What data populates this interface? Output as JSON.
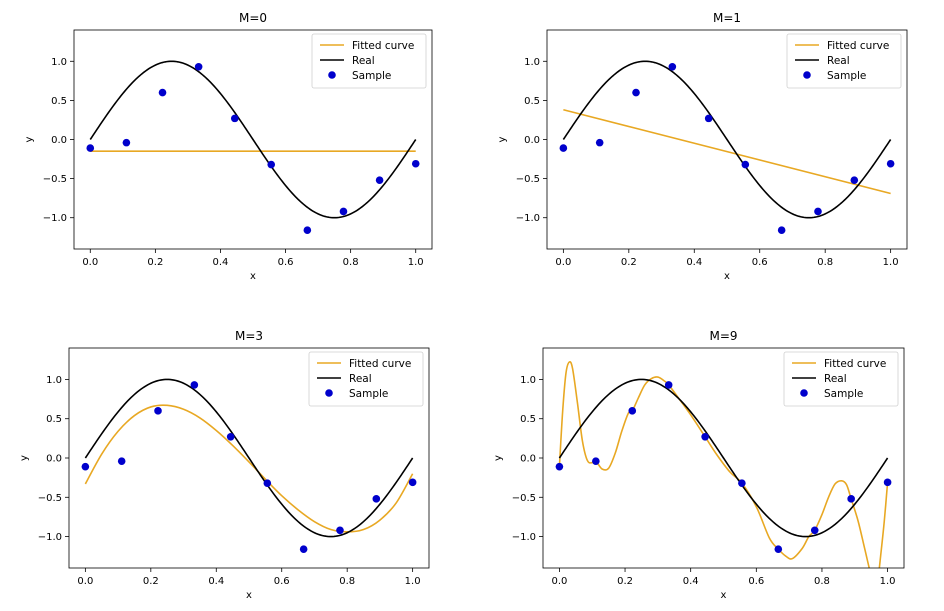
{
  "colors": {
    "fitted": "#e8a823",
    "real": "#000000",
    "sample": "#0000cc",
    "axes": "#000000",
    "background": "#ffffff"
  },
  "legend_labels": [
    "Fitted curve",
    "Real",
    "Sample"
  ],
  "chart_data": [
    {
      "type": "line",
      "title": "M=0",
      "xlabel": "x",
      "ylabel": "y",
      "xlim": [
        -0.05,
        1.05
      ],
      "ylim": [
        -1.4,
        1.4
      ],
      "xticks": [
        0.0,
        0.2,
        0.4,
        0.6,
        0.8,
        1.0
      ],
      "xtick_labels": [
        "0.0",
        "0.2",
        "0.4",
        "0.6",
        "0.8",
        "1.0"
      ],
      "yticks": [
        -1.0,
        -0.5,
        0.0,
        0.5,
        1.0
      ],
      "ytick_labels": [
        "−1.0",
        "−0.5",
        "0.0",
        "0.5",
        "1.0"
      ],
      "grid": false,
      "legend_position": "top-right",
      "series": [
        {
          "name": "Fitted curve",
          "kind": "line",
          "color": "#e8a823",
          "x": [
            0,
            1
          ],
          "y": [
            -0.15,
            -0.15
          ]
        },
        {
          "name": "Real",
          "kind": "line",
          "color": "#000000",
          "function": "sin(2*pi*x)",
          "x_range": [
            0,
            1
          ]
        },
        {
          "name": "Sample",
          "kind": "scatter",
          "color": "#0000cc",
          "x": [
            0.0,
            0.111,
            0.222,
            0.333,
            0.444,
            0.556,
            0.667,
            0.778,
            0.889,
            1.0
          ],
          "y": [
            -0.11,
            -0.04,
            0.6,
            0.93,
            0.27,
            -0.32,
            -1.16,
            -0.92,
            -0.52,
            -0.31
          ]
        }
      ]
    },
    {
      "type": "line",
      "title": "M=1",
      "xlabel": "x",
      "ylabel": "y",
      "xlim": [
        -0.05,
        1.05
      ],
      "ylim": [
        -1.4,
        1.4
      ],
      "xticks": [
        0.0,
        0.2,
        0.4,
        0.6,
        0.8,
        1.0
      ],
      "xtick_labels": [
        "0.0",
        "0.2",
        "0.4",
        "0.6",
        "0.8",
        "1.0"
      ],
      "yticks": [
        -1.0,
        -0.5,
        0.0,
        0.5,
        1.0
      ],
      "ytick_labels": [
        "−1.0",
        "−0.5",
        "0.0",
        "0.5",
        "1.0"
      ],
      "grid": false,
      "legend_position": "top-right",
      "series": [
        {
          "name": "Fitted curve",
          "kind": "line",
          "color": "#e8a823",
          "x": [
            0,
            1
          ],
          "y": [
            0.38,
            -0.69
          ]
        },
        {
          "name": "Real",
          "kind": "line",
          "color": "#000000",
          "function": "sin(2*pi*x)",
          "x_range": [
            0,
            1
          ]
        },
        {
          "name": "Sample",
          "kind": "scatter",
          "color": "#0000cc",
          "x": [
            0.0,
            0.111,
            0.222,
            0.333,
            0.444,
            0.556,
            0.667,
            0.778,
            0.889,
            1.0
          ],
          "y": [
            -0.11,
            -0.04,
            0.6,
            0.93,
            0.27,
            -0.32,
            -1.16,
            -0.92,
            -0.52,
            -0.31
          ]
        }
      ]
    },
    {
      "type": "line",
      "title": "M=3",
      "xlabel": "x",
      "ylabel": "y",
      "xlim": [
        -0.05,
        1.05
      ],
      "ylim": [
        -1.4,
        1.4
      ],
      "xticks": [
        0.0,
        0.2,
        0.4,
        0.6,
        0.8,
        1.0
      ],
      "xtick_labels": [
        "0.0",
        "0.2",
        "0.4",
        "0.6",
        "0.8",
        "1.0"
      ],
      "yticks": [
        -1.0,
        -0.5,
        0.0,
        0.5,
        1.0
      ],
      "ytick_labels": [
        "−1.0",
        "−0.5",
        "0.0",
        "0.5",
        "1.0"
      ],
      "grid": false,
      "legend_position": "top-right",
      "series": [
        {
          "name": "Fitted curve",
          "kind": "line",
          "color": "#e8a823",
          "x": [
            0.0,
            0.05,
            0.1,
            0.15,
            0.2,
            0.25,
            0.3,
            0.35,
            0.4,
            0.45,
            0.5,
            0.55,
            0.6,
            0.65,
            0.7,
            0.75,
            0.8,
            0.85,
            0.9,
            0.95,
            1.0
          ],
          "y": [
            -0.33,
            0.05,
            0.34,
            0.54,
            0.65,
            0.67,
            0.62,
            0.51,
            0.35,
            0.16,
            -0.05,
            -0.27,
            -0.48,
            -0.66,
            -0.81,
            -0.91,
            -0.94,
            -0.91,
            -0.79,
            -0.57,
            -0.2
          ]
        },
        {
          "name": "Real",
          "kind": "line",
          "color": "#000000",
          "function": "sin(2*pi*x)",
          "x_range": [
            0,
            1
          ]
        },
        {
          "name": "Sample",
          "kind": "scatter",
          "color": "#0000cc",
          "x": [
            0.0,
            0.111,
            0.222,
            0.333,
            0.444,
            0.556,
            0.667,
            0.778,
            0.889,
            1.0
          ],
          "y": [
            -0.11,
            -0.04,
            0.6,
            0.93,
            0.27,
            -0.32,
            -1.16,
            -0.92,
            -0.52,
            -0.31
          ]
        }
      ]
    },
    {
      "type": "line",
      "title": "M=9",
      "xlabel": "x",
      "ylabel": "y",
      "xlim": [
        -0.05,
        1.05
      ],
      "ylim": [
        -1.4,
        1.4
      ],
      "xticks": [
        0.0,
        0.2,
        0.4,
        0.6,
        0.8,
        1.0
      ],
      "xtick_labels": [
        "0.0",
        "0.2",
        "0.4",
        "0.6",
        "0.8",
        "1.0"
      ],
      "yticks": [
        -1.0,
        -0.5,
        0.0,
        0.5,
        1.0
      ],
      "ytick_labels": [
        "−1.0",
        "−0.5",
        "0.0",
        "0.5",
        "1.0"
      ],
      "grid": false,
      "legend_position": "top-right",
      "series": [
        {
          "name": "Fitted curve",
          "kind": "line",
          "color": "#e8a823",
          "x": [
            0.0,
            0.01,
            0.02,
            0.03,
            0.04,
            0.055,
            0.07,
            0.085,
            0.1,
            0.111,
            0.13,
            0.15,
            0.17,
            0.19,
            0.21,
            0.222,
            0.24,
            0.26,
            0.28,
            0.3,
            0.32,
            0.333,
            0.36,
            0.4,
            0.444,
            0.48,
            0.52,
            0.556,
            0.6,
            0.64,
            0.667,
            0.69,
            0.71,
            0.74,
            0.76,
            0.778,
            0.8,
            0.82,
            0.84,
            0.86,
            0.875,
            0.889,
            0.91,
            0.93,
            0.95,
            0.96,
            0.97,
            0.98,
            0.99,
            1.0
          ],
          "y": [
            -0.11,
            0.6,
            1.08,
            1.22,
            1.14,
            0.7,
            0.22,
            -0.03,
            -0.06,
            -0.04,
            -0.14,
            -0.13,
            0.06,
            0.34,
            0.57,
            0.6,
            0.76,
            0.93,
            1.01,
            1.03,
            0.98,
            0.93,
            0.78,
            0.55,
            0.27,
            0.04,
            -0.18,
            -0.32,
            -0.62,
            -1.02,
            -1.16,
            -1.25,
            -1.28,
            -1.15,
            -1.0,
            -0.92,
            -0.72,
            -0.5,
            -0.33,
            -0.29,
            -0.34,
            -0.52,
            -0.8,
            -1.15,
            -1.5,
            -1.6,
            -1.55,
            -1.2,
            -0.8,
            -0.31
          ]
        },
        {
          "name": "Real",
          "kind": "line",
          "color": "#000000",
          "function": "sin(2*pi*x)",
          "x_range": [
            0,
            1
          ]
        },
        {
          "name": "Sample",
          "kind": "scatter",
          "color": "#0000cc",
          "x": [
            0.0,
            0.111,
            0.222,
            0.333,
            0.444,
            0.556,
            0.667,
            0.778,
            0.889,
            1.0
          ],
          "y": [
            -0.11,
            -0.04,
            0.6,
            0.93,
            0.27,
            -0.32,
            -1.16,
            -0.92,
            -0.52,
            -0.31
          ]
        }
      ]
    }
  ]
}
